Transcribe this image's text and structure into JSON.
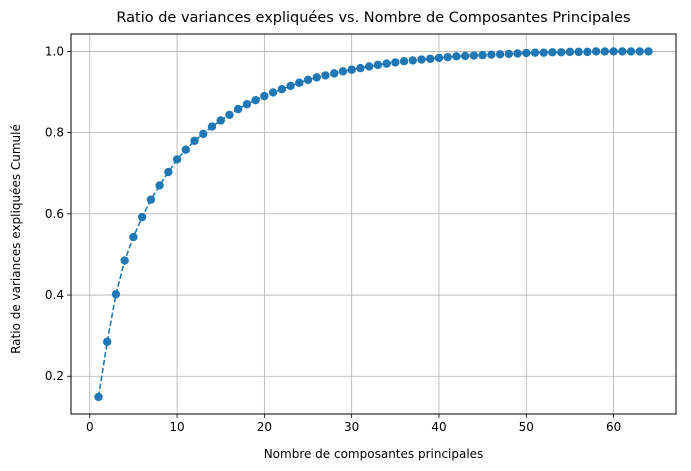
{
  "chart_data": {
    "type": "line",
    "title": "Ratio de variances expliquées vs. Nombre de Composantes Principales",
    "xlabel": "Nombre de composantes principales",
    "ylabel": "Ratio de variances expliquées Cumulé",
    "xlim": [
      -2.15,
      67.15
    ],
    "ylim": [
      0.107,
      1.043
    ],
    "xticks": [
      0,
      10,
      20,
      30,
      40,
      50,
      60
    ],
    "yticks": [
      0.2,
      0.4,
      0.6,
      0.8,
      1.0
    ],
    "ytick_labels": [
      "0.2",
      "0.4",
      "0.6",
      "0.8",
      "1.0"
    ],
    "grid": true,
    "line_style": "dashed",
    "marker": "circle",
    "color": "#1f77b4",
    "series": [
      {
        "x": [
          1,
          2,
          3,
          4,
          5,
          6,
          7,
          8,
          9,
          10,
          11,
          12,
          13,
          14,
          15,
          16,
          17,
          18,
          19,
          20,
          21,
          22,
          23,
          24,
          25,
          26,
          27,
          28,
          29,
          30,
          31,
          32,
          33,
          34,
          35,
          36,
          37,
          38,
          39,
          40,
          41,
          42,
          43,
          44,
          45,
          46,
          47,
          48,
          49,
          50,
          51,
          52,
          53,
          54,
          55,
          56,
          57,
          58,
          59,
          60,
          61,
          62,
          63,
          64
        ],
        "values": [
          0.149,
          0.285,
          0.402,
          0.485,
          0.543,
          0.592,
          0.635,
          0.67,
          0.703,
          0.734,
          0.758,
          0.78,
          0.797,
          0.815,
          0.83,
          0.844,
          0.858,
          0.87,
          0.88,
          0.89,
          0.899,
          0.907,
          0.915,
          0.923,
          0.93,
          0.936,
          0.941,
          0.946,
          0.951,
          0.955,
          0.959,
          0.963,
          0.967,
          0.97,
          0.973,
          0.976,
          0.978,
          0.98,
          0.982,
          0.984,
          0.986,
          0.988,
          0.989,
          0.99,
          0.991,
          0.992,
          0.993,
          0.994,
          0.995,
          0.996,
          0.997,
          0.997,
          0.998,
          0.998,
          0.999,
          0.999,
          0.999,
          1.0,
          1.0,
          1.0,
          1.0,
          1.0,
          1.0,
          1.0
        ]
      }
    ]
  }
}
